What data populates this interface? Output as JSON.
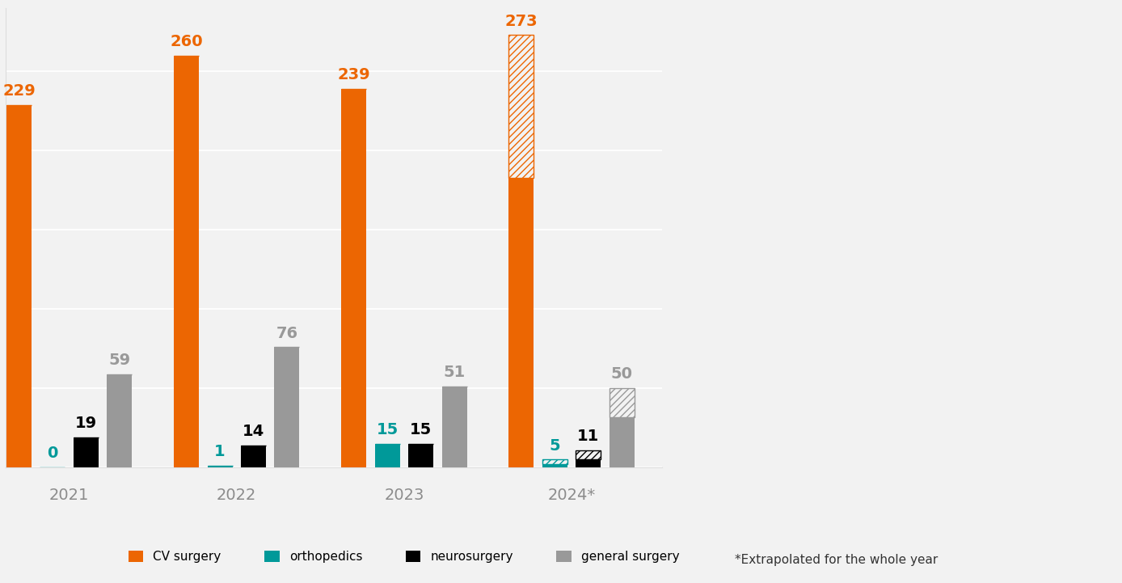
{
  "chart_data": {
    "type": "bar",
    "categories": [
      "2021",
      "2022",
      "2023",
      "2024*"
    ],
    "series": [
      {
        "name": "CV surgery",
        "color": "#ec6602",
        "values": [
          229,
          260,
          239,
          273
        ],
        "actual_values": [
          229,
          260,
          239,
          183
        ]
      },
      {
        "name": "orthopedics",
        "color": "#009999",
        "values": [
          0,
          1,
          15,
          5
        ],
        "actual_values": [
          0,
          1,
          15,
          2
        ]
      },
      {
        "name": "neurosurgery",
        "color": "#000000",
        "values": [
          19,
          14,
          15,
          11
        ],
        "actual_values": [
          19,
          14,
          15,
          5
        ]
      },
      {
        "name": "general surgery",
        "color": "#999999",
        "values": [
          59,
          76,
          51,
          50
        ],
        "actual_values": [
          59,
          76,
          51,
          32
        ]
      }
    ],
    "ylim": [
      0,
      290
    ],
    "yticks": [
      0,
      50,
      100,
      150,
      200,
      250
    ],
    "grid": true,
    "data_labels": true,
    "tick_labels": "x",
    "legend": "lower center",
    "footnote": "*Extrapolated for the whole year"
  }
}
